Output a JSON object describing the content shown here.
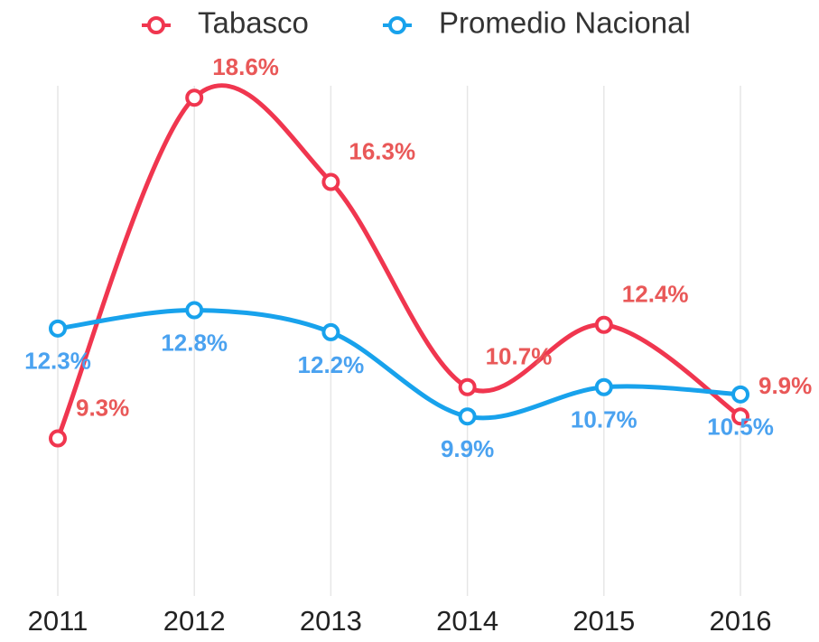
{
  "chart_data": {
    "type": "line",
    "categories": [
      "2011",
      "2012",
      "2013",
      "2014",
      "2015",
      "2016"
    ],
    "series": [
      {
        "name": "Tabasco",
        "color": "#f0364f",
        "label_color": "#e95858",
        "values": [
          9.3,
          18.6,
          16.3,
          10.7,
          12.4,
          9.9
        ],
        "value_labels": [
          "9.3%",
          "18.6%",
          "16.3%",
          "10.7%",
          "12.4%",
          "9.9%"
        ]
      },
      {
        "name": "Promedio Nacional",
        "color": "#18a2ec",
        "label_color": "#4aa2f0",
        "values": [
          12.3,
          12.8,
          12.2,
          9.9,
          10.7,
          10.5
        ],
        "value_labels": [
          "12.3%",
          "12.8%",
          "12.2%",
          "9.9%",
          "10.7%",
          "10.5%"
        ]
      }
    ],
    "ylim": [
      5,
      19
    ],
    "grid": false
  }
}
